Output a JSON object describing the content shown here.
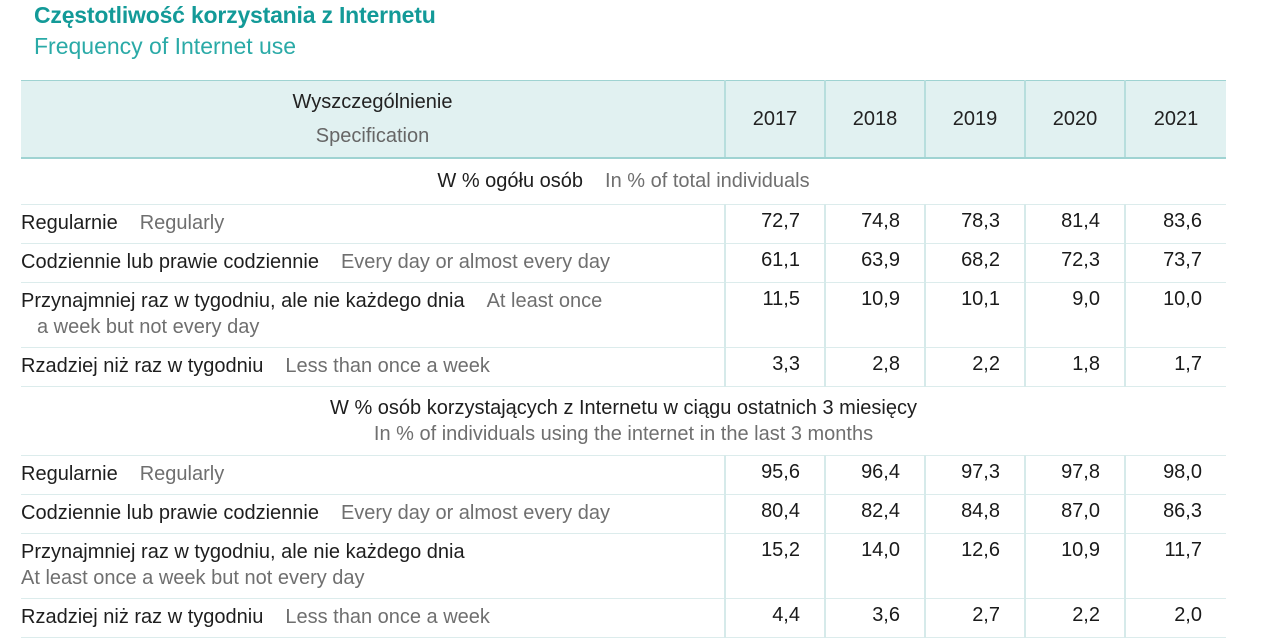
{
  "title": {
    "pl": "Częstotliwość korzystania z Internetu",
    "en": "Frequency of Internet use"
  },
  "header": {
    "spec_pl": "Wyszczególnienie",
    "spec_en": "Specification",
    "years": [
      "2017",
      "2018",
      "2019",
      "2020",
      "2021"
    ]
  },
  "sections": [
    {
      "heading_pl": "W % ogółu osób",
      "heading_en": "In % of total individuals",
      "rows": [
        {
          "pl": "Regularnie",
          "en": "Regularly",
          "values": [
            "72,7",
            "74,8",
            "78,3",
            "81,4",
            "83,6"
          ]
        },
        {
          "pl": "Codziennie lub prawie codziennie",
          "en": "Every day or almost every day",
          "values": [
            "61,1",
            "63,9",
            "68,2",
            "72,3",
            "73,7"
          ]
        },
        {
          "pl": "Przynajmniej raz w tygodniu, ale nie każdego dnia",
          "en": "At least once",
          "en_cont": "a week but not every day",
          "values": [
            "11,5",
            "10,9",
            "10,1",
            "9,0",
            "10,0"
          ]
        },
        {
          "pl": "Rzadziej niż raz w tygodniu",
          "en": "Less than once a week",
          "values": [
            "3,3",
            "2,8",
            "2,2",
            "1,8",
            "1,7"
          ]
        }
      ]
    },
    {
      "heading_pl": "W % osób korzystających z Internetu w ciągu ostatnich 3 miesięcy",
      "heading_en": "In % of individuals using the internet in the last 3 months",
      "rows": [
        {
          "pl": "Regularnie",
          "en": "Regularly",
          "values": [
            "95,6",
            "96,4",
            "97,3",
            "97,8",
            "98,0"
          ]
        },
        {
          "pl": "Codziennie lub prawie codziennie",
          "en": "Every day or almost every day",
          "values": [
            "80,4",
            "82,4",
            "84,8",
            "87,0",
            "86,3"
          ]
        },
        {
          "pl": "Przynajmniej raz w tygodniu, ale nie każdego dnia",
          "en": "At least once a week but not every day",
          "values": [
            "15,2",
            "14,0",
            "12,6",
            "10,9",
            "11,7"
          ]
        },
        {
          "pl": "Rzadziej niż raz w tygodniu",
          "en": "Less than once a week",
          "values": [
            "4,4",
            "3,6",
            "2,7",
            "2,2",
            "2,0"
          ]
        }
      ]
    }
  ]
}
